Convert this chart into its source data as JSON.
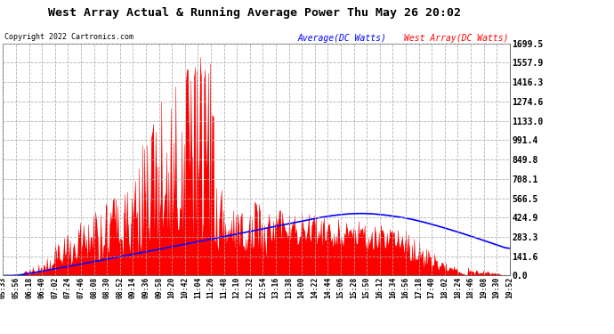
{
  "title": "West Array Actual & Running Average Power Thu May 26 20:02",
  "copyright": "Copyright 2022 Cartronics.com",
  "legend_avg": "Average(DC Watts)",
  "legend_west": "West Array(DC Watts)",
  "ylim": [
    0.0,
    1699.5
  ],
  "yticks": [
    0.0,
    141.6,
    283.3,
    424.9,
    566.5,
    708.1,
    849.8,
    991.4,
    1133.0,
    1274.6,
    1416.3,
    1557.9,
    1699.5
  ],
  "bg_color": "#ffffff",
  "plot_bg": "#ffffff",
  "grid_color": "#aaaaaa",
  "bar_color": "#ff0000",
  "avg_color": "#0000ff",
  "title_color": "#000000",
  "copyright_color": "#000000",
  "legend_avg_color": "#0000ff",
  "legend_west_color": "#ff0000",
  "n_points": 500,
  "xtick_labels": [
    "05:33",
    "05:56",
    "06:18",
    "06:40",
    "07:02",
    "07:24",
    "07:46",
    "08:08",
    "08:30",
    "08:52",
    "09:14",
    "09:36",
    "09:58",
    "10:20",
    "10:42",
    "11:04",
    "11:26",
    "11:48",
    "12:10",
    "12:32",
    "12:54",
    "13:16",
    "13:38",
    "14:00",
    "14:22",
    "14:44",
    "15:06",
    "15:28",
    "15:50",
    "16:12",
    "16:34",
    "16:56",
    "17:18",
    "17:40",
    "18:02",
    "18:24",
    "18:46",
    "19:08",
    "19:30",
    "19:52"
  ]
}
